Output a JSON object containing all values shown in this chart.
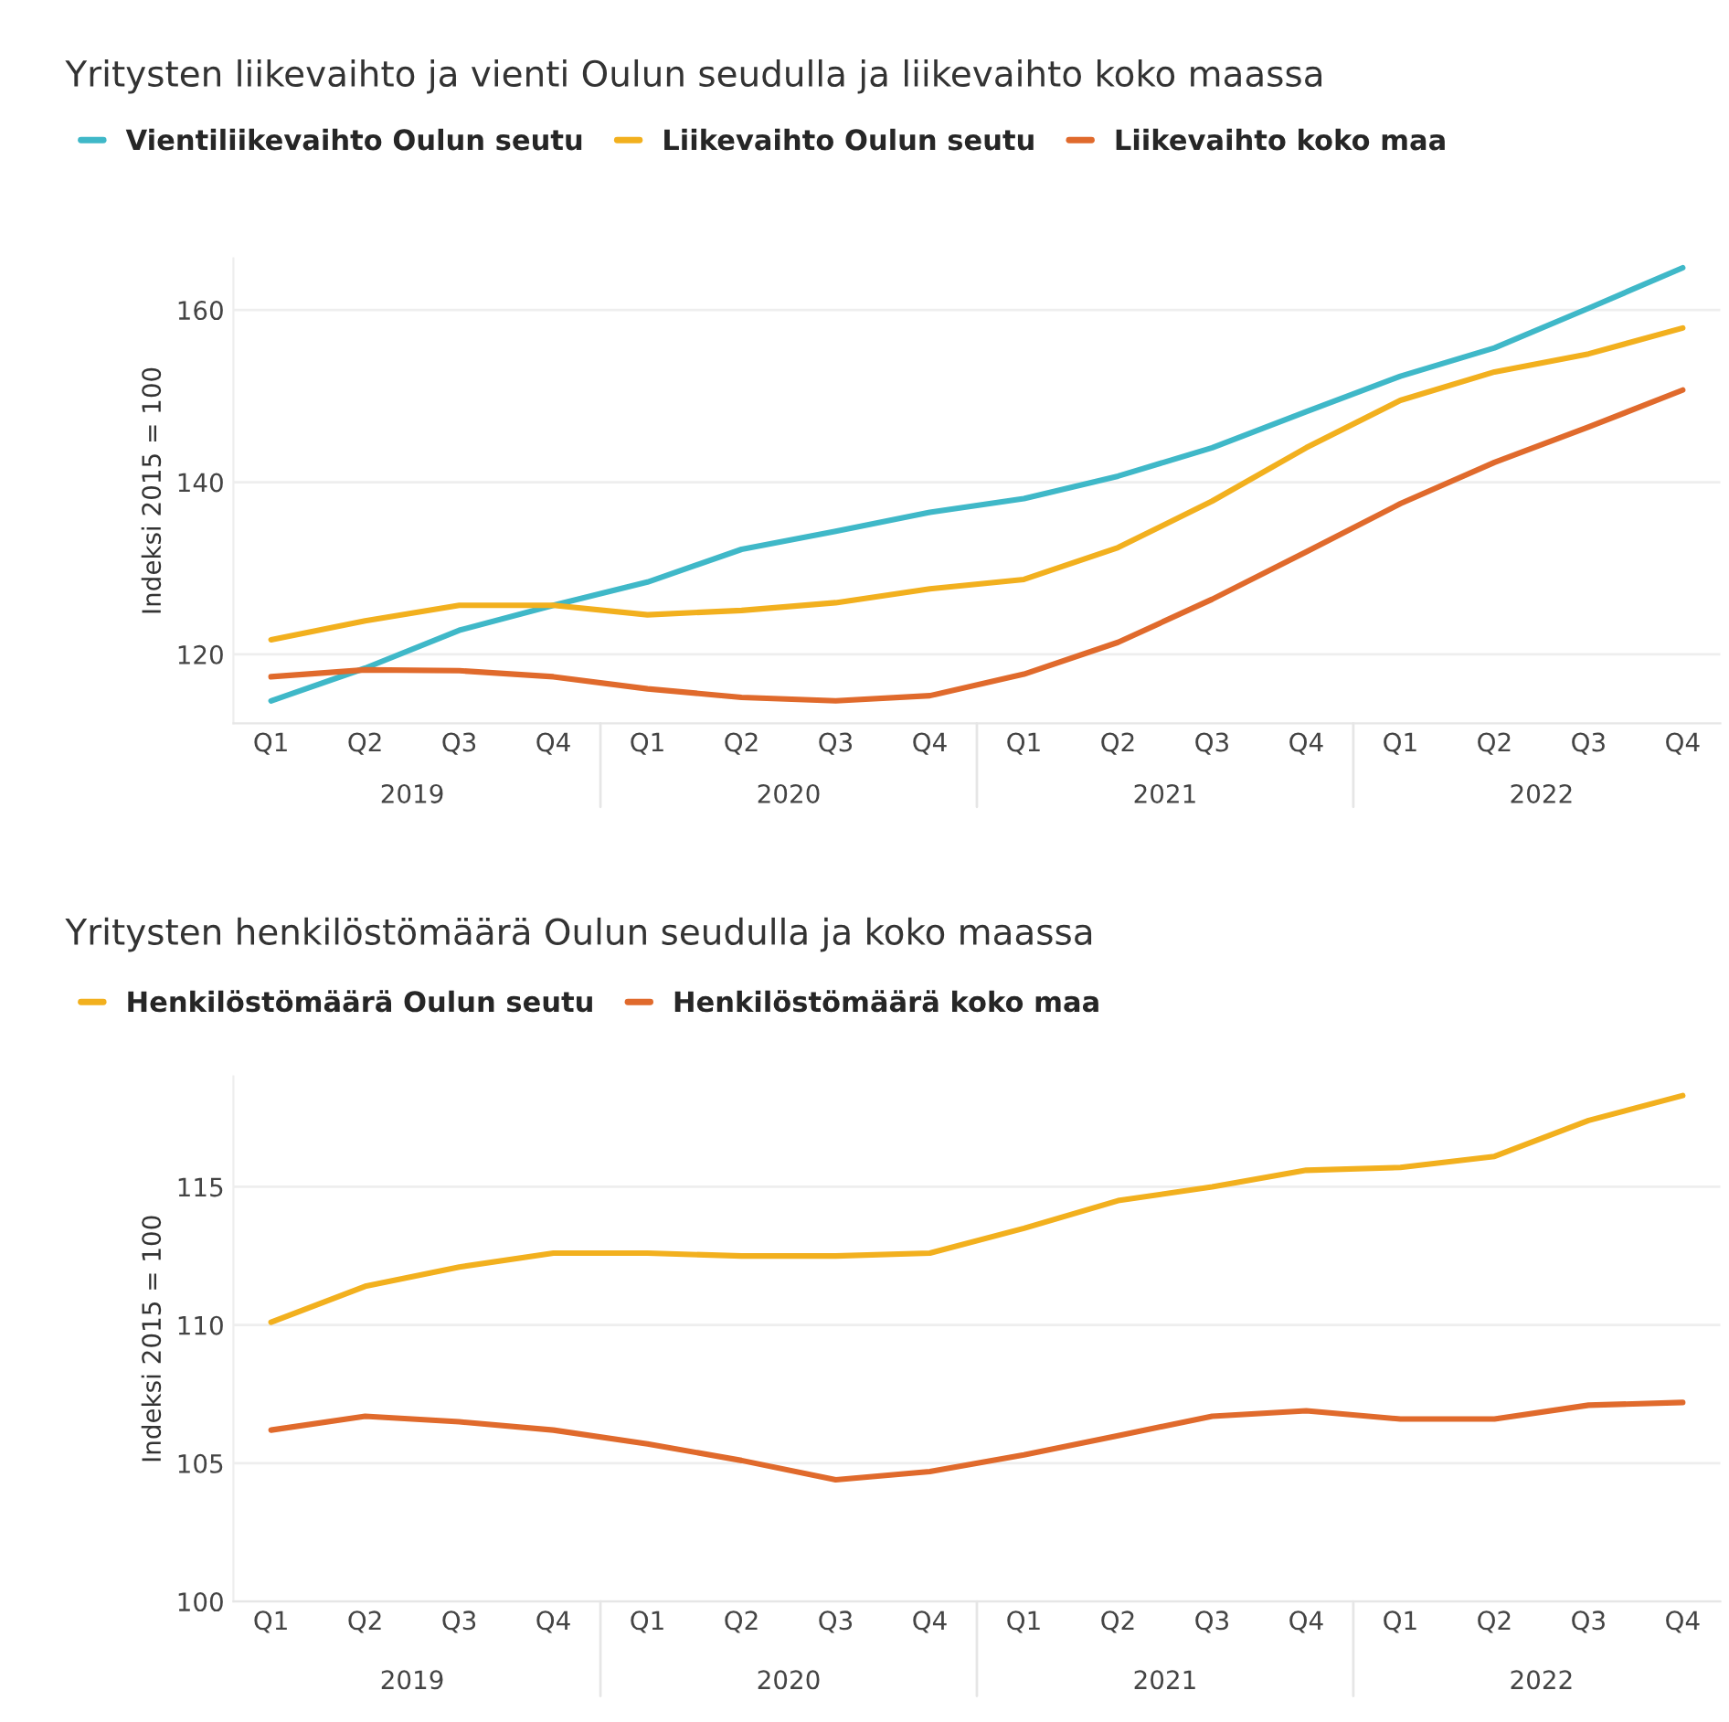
{
  "chart_data": [
    {
      "type": "line",
      "title": "Yritysten liikevaihto ja vienti Oulun seudulla ja liikevaihto koko maassa",
      "ylabel": "Indeksi 2015 = 100",
      "categories": [
        "Q1",
        "Q2",
        "Q3",
        "Q4",
        "Q1",
        "Q2",
        "Q3",
        "Q4",
        "Q1",
        "Q2",
        "Q3",
        "Q4",
        "Q1",
        "Q2",
        "Q3",
        "Q4"
      ],
      "annotations": [
        "2019",
        "2020",
        "2021",
        "2022"
      ],
      "series": [
        {
          "name": "Vientiliikevaihto Oulun seutu",
          "color": "#3fb8c8",
          "values": [
            114.6,
            118.4,
            122.8,
            125.7,
            128.4,
            132.2,
            134.3,
            136.5,
            138.1,
            140.7,
            144,
            148.2,
            152.3,
            155.6,
            160.2,
            164.9
          ]
        },
        {
          "name": "Liikevaihto Oulun seutu",
          "color": "#f2b01e",
          "values": [
            121.7,
            123.9,
            125.7,
            125.7,
            124.6,
            125.1,
            126,
            127.6,
            128.7,
            132.4,
            137.8,
            144,
            149.5,
            152.8,
            154.9,
            157.9
          ]
        },
        {
          "name": "Liikevaihto koko maa",
          "color": "#e06a2c",
          "values": [
            117.4,
            118.2,
            118.1,
            117.4,
            116,
            115,
            114.6,
            115.2,
            117.7,
            121.4,
            126.4,
            131.9,
            137.5,
            142.3,
            146.4,
            150.7
          ]
        }
      ],
      "ylim": [
        112,
        166
      ],
      "yticks": [
        120,
        140,
        160
      ],
      "grid": "y",
      "legend": "top left"
    },
    {
      "type": "line",
      "title": "Yritysten henkilöstömäärä Oulun seudulla ja koko maassa",
      "ylabel": "Indeksi 2015 = 100",
      "categories": [
        "Q1",
        "Q2",
        "Q3",
        "Q4",
        "Q1",
        "Q2",
        "Q3",
        "Q4",
        "Q1",
        "Q2",
        "Q3",
        "Q4",
        "Q1",
        "Q2",
        "Q3",
        "Q4"
      ],
      "annotations": [
        "2019",
        "2020",
        "2021",
        "2022"
      ],
      "series": [
        {
          "name": "Henkilöstömäärä Oulun seutu",
          "color": "#f2b01e",
          "values": [
            110.1,
            111.4,
            112.1,
            112.6,
            112.6,
            112.5,
            112.5,
            112.6,
            113.5,
            114.5,
            115,
            115.6,
            115.7,
            116.1,
            117.4,
            118.3
          ]
        },
        {
          "name": "Henkilöstömäärä koko maa",
          "color": "#e06a2c",
          "values": [
            106.2,
            106.7,
            106.5,
            106.2,
            105.7,
            105.1,
            104.4,
            104.7,
            105.3,
            106,
            106.7,
            106.9,
            106.6,
            106.6,
            107.1,
            107.2
          ]
        }
      ],
      "ylim": [
        100,
        119
      ],
      "yticks": [
        100,
        105,
        110,
        115
      ],
      "grid": "y",
      "legend": "top left"
    }
  ]
}
